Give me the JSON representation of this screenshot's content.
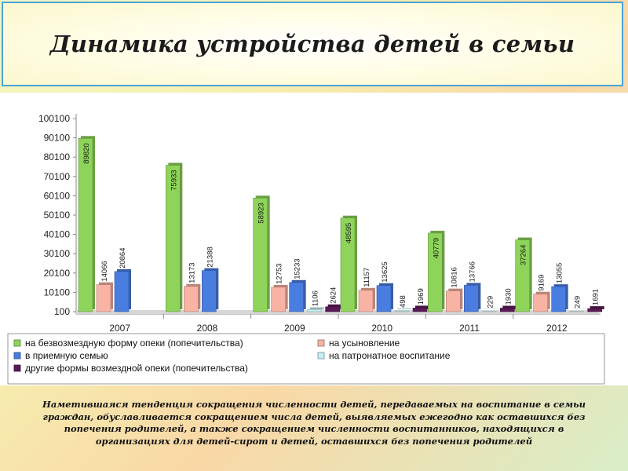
{
  "title": "Динамика устройства детей в семьи",
  "note": "Наметившаяся тенденция сокращения численности детей, передаваемых на воспитание в семьи граждан, обуславливается сокращением числа детей, выявляемых ежегодно как оставшихся без попечения родителей, а также сокращением численности воспитанников, находящихся в организациях для детей-сирот и детей, оставшихся без попечения родителей",
  "chart_data": {
    "type": "bar",
    "title": "",
    "xlabel": "",
    "ylabel": "",
    "ylim": [
      100,
      100100
    ],
    "y_ticks": [
      100,
      10100,
      20100,
      30100,
      40100,
      50100,
      60100,
      70100,
      80100,
      90100,
      100100
    ],
    "grid": false,
    "legend_position": "bottom",
    "categories": [
      "2007",
      "2008",
      "2009",
      "2010",
      "2011",
      "2012"
    ],
    "series": [
      {
        "name": "на безвозмездную форму опеки (попечительства)",
        "color": "#8fd45a",
        "values": [
          89820,
          75933,
          58923,
          48595,
          40779,
          37264
        ],
        "labels": [
          "89820",
          "75933",
          "58923",
          "48595",
          "40779",
          "37264"
        ]
      },
      {
        "name": "на усыновление",
        "color": "#f9b3a4",
        "values": [
          14066,
          13173,
          12753,
          11157,
          10816,
          9169
        ],
        "labels": [
          "14066",
          "13173",
          "12753",
          "11157",
          "10816",
          "9169"
        ]
      },
      {
        "name": "в приемную семью",
        "color": "#4a7de0",
        "values": [
          20864,
          21388,
          15233,
          13625,
          13766,
          13055
        ],
        "labels": [
          "20864",
          "21388",
          "15233",
          "13625",
          "13766",
          "13055"
        ]
      },
      {
        "name": "на патронатное воспитание",
        "color": "#c6f0f4",
        "values": [
          null,
          null,
          1106,
          498,
          229,
          249
        ],
        "labels": [
          "",
          "",
          "1106",
          "498",
          "229",
          "249"
        ]
      },
      {
        "name": "другие формы возмездной опеки (попечительства)",
        "color": "#5a1a55",
        "values": [
          null,
          null,
          2624,
          1969,
          1930,
          1691
        ],
        "labels": [
          "",
          "",
          "2624",
          "1969",
          "1930",
          "1691"
        ]
      }
    ]
  }
}
